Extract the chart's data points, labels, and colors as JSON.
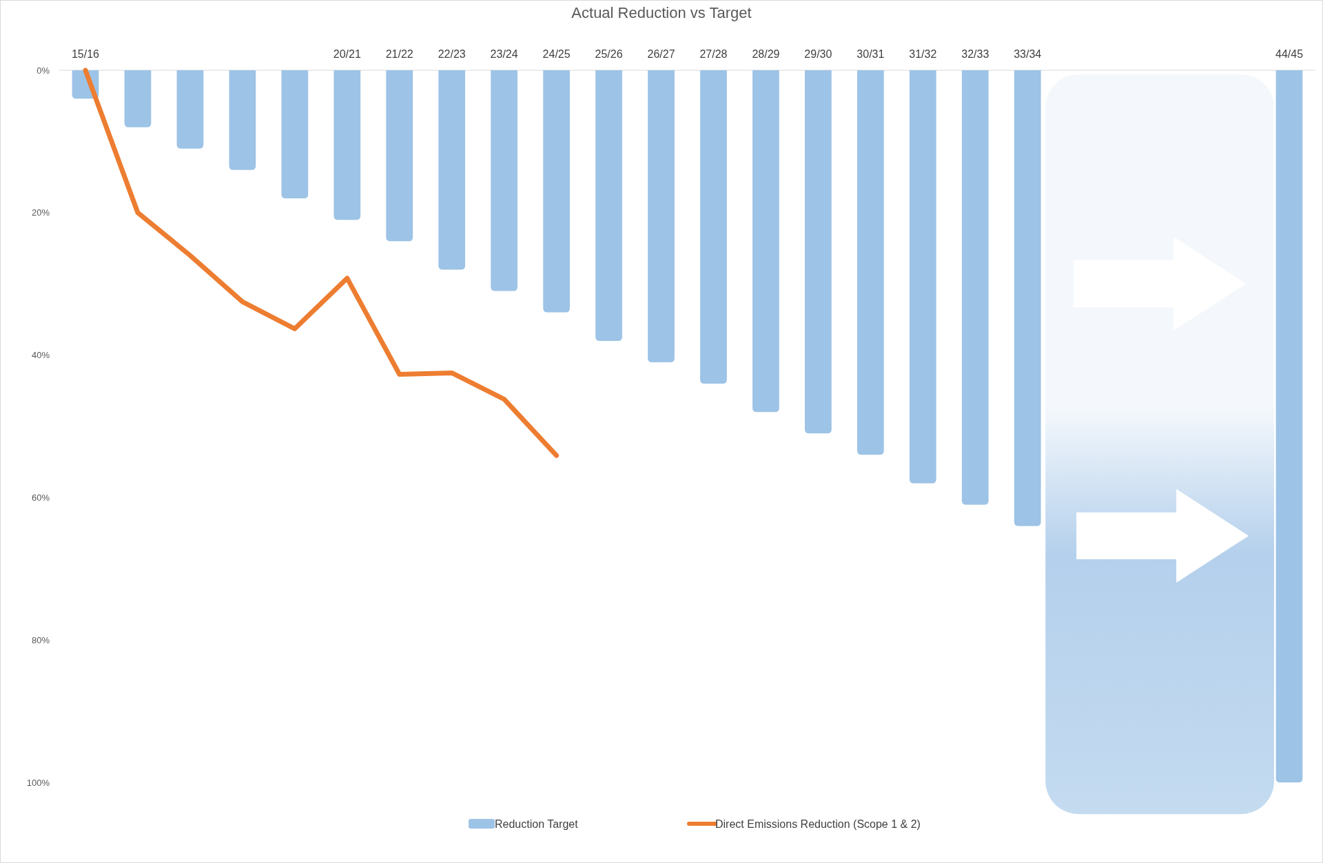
{
  "chart_data": {
    "type": "bar",
    "title": "Actual Reduction vs Target",
    "categories": [
      "15/16",
      null,
      null,
      null,
      null,
      "20/21",
      "21/22",
      "22/23",
      "23/24",
      "24/25",
      "25/26",
      "26/27",
      "27/28",
      "28/29",
      "29/30",
      "30/31",
      "31/32",
      "32/33",
      "33/34",
      null,
      null,
      null,
      null,
      "44/45"
    ],
    "series": [
      {
        "name": "Reduction Target",
        "color": "#9dc3e6",
        "values": [
          4,
          8,
          11,
          14,
          18,
          21,
          24,
          28,
          31,
          34,
          38,
          41,
          44,
          48,
          51,
          54,
          58,
          61,
          64,
          null,
          null,
          null,
          null,
          100
        ]
      },
      {
        "name": "Direct Emissions Reduction (Scope 1 & 2)",
        "type": "line",
        "color": "#ed7d31",
        "values": [
          0,
          20,
          26,
          32.5,
          36.3,
          29.2,
          42.7,
          42.5,
          46.2,
          54.1,
          null,
          null,
          null,
          null,
          null,
          null,
          null,
          null,
          null,
          null,
          null,
          null,
          null,
          null
        ]
      }
    ],
    "ylim": [
      100,
      0
    ],
    "yticks": [
      {
        "value": 0,
        "label": "0%"
      },
      {
        "value": 20,
        "label": "20%"
      },
      {
        "value": 40,
        "label": "40%"
      },
      {
        "value": 60,
        "label": "60%"
      },
      {
        "value": 80,
        "label": "80%"
      },
      {
        "value": 100,
        "label": "100%"
      }
    ],
    "legend": "bottom",
    "grid": false,
    "marker": "none",
    "line_style": "solid"
  }
}
